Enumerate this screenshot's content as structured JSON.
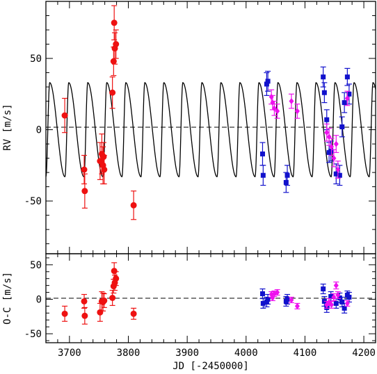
{
  "chart_data": {
    "type": "scatter",
    "x_range": [
      3660,
      4220
    ],
    "x_ticks": [
      3700,
      3800,
      3900,
      4000,
      4100,
      4200
    ],
    "xlabel": "JD [-2450000]",
    "zero_line_dashed": true,
    "colors": {
      "red": "#ee1111",
      "blue": "#1111cc",
      "magenta": "#ee11ee",
      "axis": "#000000"
    },
    "rv_panel": {
      "ylabel": "RV [m/s]",
      "ylim": [
        -87,
        90
      ],
      "y_ticks": [
        -50,
        0,
        50
      ],
      "model": {
        "semi_amplitude": 33,
        "period_days": 32.3,
        "zero_phase_jd": 3660,
        "shape": "eccentric",
        "color": "#000000"
      },
      "series": [
        {
          "color": "red",
          "marker": "circle",
          "points": [
            [
              3692,
              10,
              12
            ],
            [
              3725,
              -28,
              10
            ],
            [
              3726,
              -43,
              12
            ],
            [
              3752,
              -22,
              13
            ],
            [
              3755,
              -17,
              14
            ],
            [
              3757,
              -25,
              13
            ],
            [
              3758,
              -19,
              10
            ],
            [
              3759,
              -28,
              10
            ],
            [
              3773,
              26,
              11
            ],
            [
              3775,
              48,
              10
            ],
            [
              3776,
              75,
              12
            ],
            [
              3777,
              57,
              11
            ],
            [
              3779,
              60,
              10
            ],
            [
              3809,
              -53,
              10
            ]
          ]
        },
        {
          "color": "blue",
          "marker": "square",
          "points": [
            [
              4028,
              -17,
              8
            ],
            [
              4029,
              -32,
              7
            ],
            [
              4035,
              32,
              8
            ],
            [
              4037,
              34,
              7
            ],
            [
              4068,
              -37,
              7
            ],
            [
              4070,
              -32,
              7
            ],
            [
              4131,
              37,
              7
            ],
            [
              4133,
              26,
              7
            ],
            [
              4137,
              7,
              7
            ],
            [
              4141,
              -16,
              7
            ],
            [
              4144,
              -15,
              7
            ],
            [
              4153,
              -31,
              7
            ],
            [
              4159,
              -32,
              7
            ],
            [
              4163,
              2,
              7
            ],
            [
              4167,
              19,
              7
            ],
            [
              4172,
              37,
              6
            ],
            [
              4175,
              25,
              7
            ]
          ]
        },
        {
          "color": "magenta",
          "marker": "diamond",
          "points": [
            [
              4043,
              23,
              5
            ],
            [
              4045,
              19,
              5
            ],
            [
              4048,
              15,
              5
            ],
            [
              4053,
              13,
              5
            ],
            [
              4077,
              20,
              5
            ],
            [
              4087,
              13,
              5
            ],
            [
              4137,
              -2,
              6
            ],
            [
              4141,
              -5,
              6
            ],
            [
              4145,
              -12,
              6
            ],
            [
              4149,
              -20,
              6
            ],
            [
              4153,
              -10,
              6
            ],
            [
              4156,
              -28,
              6
            ],
            [
              4172,
              22,
              5
            ]
          ]
        }
      ]
    },
    "oc_panel": {
      "ylabel": "O-C [m/s]",
      "ylim": [
        -63,
        66
      ],
      "y_ticks": [
        -50,
        0,
        50
      ],
      "series": [
        {
          "color": "red",
          "marker": "circle",
          "points": [
            [
              3692,
              -21,
              11
            ],
            [
              3725,
              -3,
              10
            ],
            [
              3726,
              -24,
              12
            ],
            [
              3752,
              -19,
              13
            ],
            [
              3755,
              -3,
              14
            ],
            [
              3757,
              -4,
              13
            ],
            [
              3759,
              -2,
              10
            ],
            [
              3773,
              2,
              11
            ],
            [
              3775,
              19,
              10
            ],
            [
              3776,
              41,
              12
            ],
            [
              3777,
              24,
              11
            ],
            [
              3779,
              30,
              10
            ],
            [
              3809,
              -21,
              8
            ]
          ]
        },
        {
          "color": "blue",
          "marker": "square",
          "points": [
            [
              4028,
              8,
              7
            ],
            [
              4029,
              -6,
              7
            ],
            [
              4035,
              -4,
              7
            ],
            [
              4037,
              0,
              7
            ],
            [
              4068,
              -3,
              7
            ],
            [
              4070,
              0,
              7
            ],
            [
              4131,
              15,
              7
            ],
            [
              4133,
              -3,
              7
            ],
            [
              4137,
              -12,
              7
            ],
            [
              4141,
              -6,
              7
            ],
            [
              4144,
              4,
              7
            ],
            [
              4153,
              -6,
              7
            ],
            [
              4159,
              2,
              7
            ],
            [
              4163,
              -4,
              7
            ],
            [
              4167,
              -13,
              7
            ],
            [
              4172,
              6,
              6
            ],
            [
              4175,
              3,
              7
            ]
          ]
        },
        {
          "color": "magenta",
          "marker": "diamond",
          "points": [
            [
              4043,
              7,
              4
            ],
            [
              4045,
              2,
              4
            ],
            [
              4048,
              8,
              4
            ],
            [
              4053,
              10,
              4
            ],
            [
              4077,
              -1,
              4
            ],
            [
              4087,
              -10,
              4
            ],
            [
              4137,
              -8,
              5
            ],
            [
              4141,
              -4,
              5
            ],
            [
              4145,
              -8,
              5
            ],
            [
              4149,
              3,
              5
            ],
            [
              4153,
              20,
              5
            ],
            [
              4156,
              6,
              5
            ],
            [
              4172,
              -6,
              4
            ]
          ]
        }
      ]
    }
  }
}
